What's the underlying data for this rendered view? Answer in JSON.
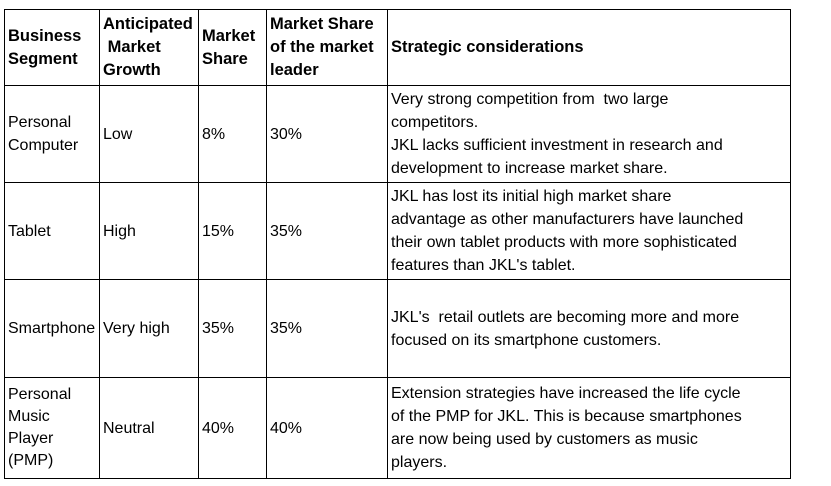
{
  "headers": {
    "segment": [
      "Business",
      "Segment"
    ],
    "growth": [
      "Anticipated",
      " Market",
      "Growth"
    ],
    "share": [
      "Market",
      "Share"
    ],
    "leader": [
      "Market Share",
      "of the market",
      "leader"
    ],
    "strategy": "Strategic considerations"
  },
  "rows": [
    {
      "segment": [
        "Personal",
        "Computer"
      ],
      "growth": "Low",
      "share": "8%",
      "leader": "30%",
      "strategy": [
        "Very strong competition from  two large",
        "competitors.",
        "JKL lacks sufficient investment in research and",
        "development to increase market share."
      ]
    },
    {
      "segment": [
        "Tablet"
      ],
      "growth": "High",
      "share": "15%",
      "leader": "35%",
      "strategy": [
        "JKL has lost its initial high market share",
        "advantage as other manufacturers have launched",
        "their own tablet products with more sophisticated",
        "features than JKL's tablet."
      ]
    },
    {
      "segment": [
        "Smartphone"
      ],
      "growth": "Very high",
      "share": "35%",
      "leader": "35%",
      "strategy": [
        "JKL's  retail outlets are becoming more and more",
        "focused on its smartphone customers."
      ]
    },
    {
      "segment": [
        "Personal",
        "Music",
        "Player",
        "(PMP)"
      ],
      "growth": "Neutral",
      "share": "40%",
      "leader": "40%",
      "strategy": [
        "Extension strategies have increased the life cycle",
        "of the PMP for JKL. This is because smartphones",
        "are now being used by customers as music",
        "players."
      ]
    }
  ]
}
